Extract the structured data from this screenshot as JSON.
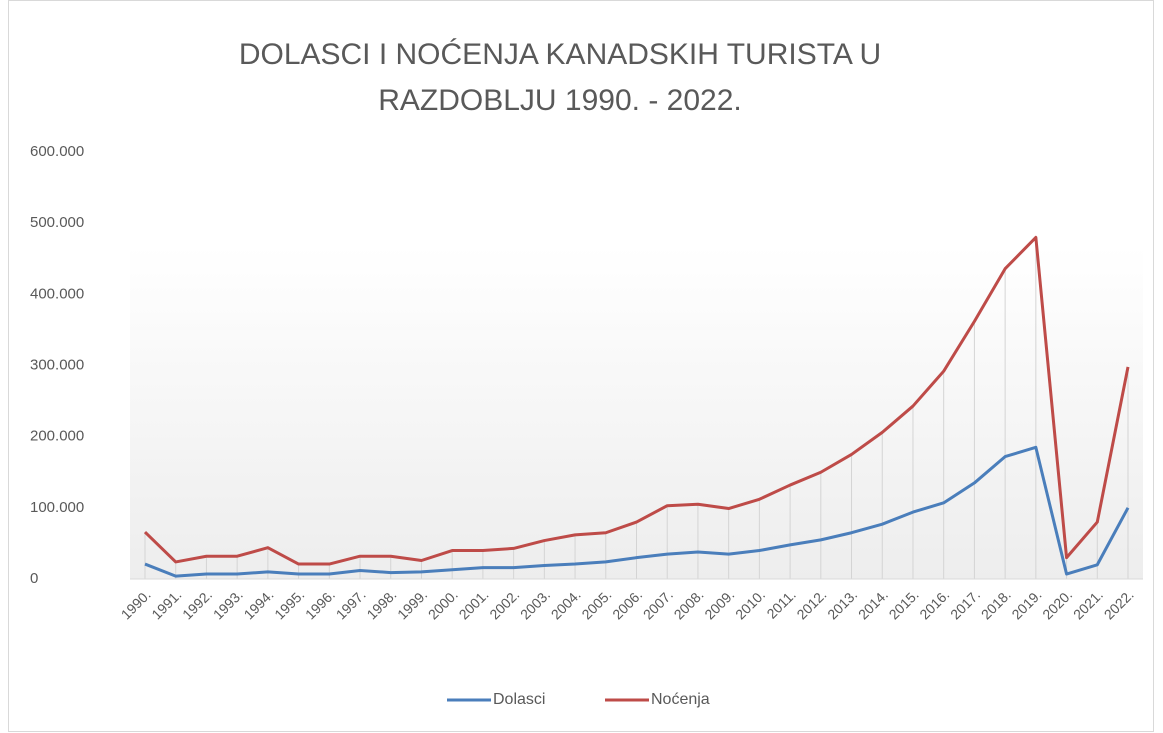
{
  "chart_data": {
    "type": "line",
    "title": "DOLASCI I NOĆENJA KANADSKIH TURISTA U RAZDOBLJU 1990. - 2022.",
    "categories": [
      "1990.",
      "1991.",
      "1992.",
      "1993.",
      "1994.",
      "1995.",
      "1996.",
      "1997.",
      "1998.",
      "1999.",
      "2000.",
      "2001.",
      "2002.",
      "2003.",
      "2004.",
      "2005.",
      "2006.",
      "2007.",
      "2008.",
      "2009.",
      "2010.",
      "2011.",
      "2012.",
      "2013.",
      "2014.",
      "2015.",
      "2016.",
      "2017.",
      "2018.",
      "2019.",
      "2020.",
      "2021.",
      "2022."
    ],
    "series": [
      {
        "name": "Dolasci",
        "color": "#4a7ebb",
        "values": [
          21000,
          4000,
          7000,
          7000,
          10000,
          7000,
          7000,
          12000,
          9000,
          10000,
          13000,
          16000,
          16000,
          19000,
          21000,
          24000,
          30000,
          35000,
          38000,
          35000,
          40000,
          48000,
          55000,
          65000,
          77000,
          94000,
          107000,
          135000,
          172000,
          185000,
          7000,
          20000,
          100000
        ]
      },
      {
        "name": "Noćenja",
        "color": "#be4b48",
        "values": [
          66000,
          24000,
          32000,
          32000,
          44000,
          21000,
          21000,
          32000,
          32000,
          26000,
          40000,
          40000,
          43000,
          54000,
          62000,
          65000,
          80000,
          103000,
          105000,
          99000,
          112000,
          132000,
          150000,
          175000,
          206000,
          243000,
          292000,
          362000,
          436000,
          480000,
          30000,
          80000,
          298000
        ]
      }
    ],
    "ylim": [
      0,
      600000
    ],
    "yticks": [
      0,
      {
        "value": 100000,
        "label": "100.000"
      },
      {
        "value": 200000,
        "label": "200.000"
      },
      {
        "value": 300000,
        "label": "300.000"
      },
      {
        "value": 400000,
        "label": "400.000"
      },
      {
        "value": 500000,
        "label": "500.000"
      },
      {
        "value": 600000,
        "label": "600.000"
      }
    ],
    "legend": "bottom"
  }
}
